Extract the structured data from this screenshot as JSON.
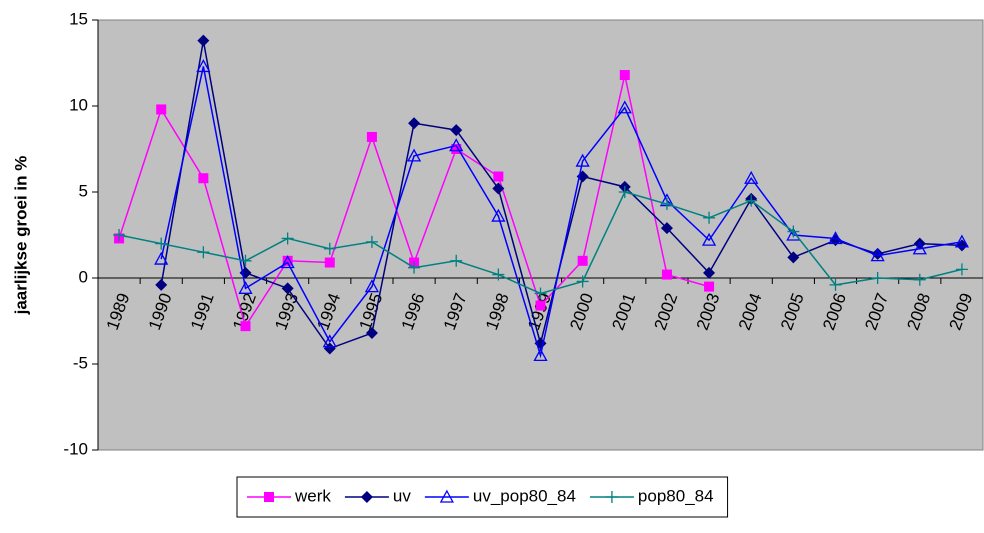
{
  "chart_data": {
    "type": "line",
    "y_label": "jaarlijkse groei in %",
    "categories": [
      "1989",
      "1990",
      "1991",
      "1992",
      "1993",
      "1994",
      "1995",
      "1996",
      "1997",
      "1998",
      "1999",
      "2000",
      "2001",
      "2002",
      "2003",
      "2004",
      "2005",
      "2006",
      "2007",
      "2008",
      "2009"
    ],
    "series": [
      {
        "name": "werk",
        "color": "#ff00ff",
        "marker": "square",
        "values": [
          2.3,
          9.8,
          5.8,
          -2.8,
          1.0,
          0.9,
          8.2,
          0.9,
          7.5,
          5.9,
          -1.6,
          1.0,
          11.8,
          0.2,
          -0.5,
          null,
          null,
          null,
          null,
          null,
          null
        ]
      },
      {
        "name": "uv",
        "color": "#000080",
        "marker": "diamond",
        "values": [
          null,
          -0.4,
          13.8,
          0.3,
          -0.6,
          -4.1,
          -3.2,
          9.0,
          8.6,
          5.2,
          -3.8,
          5.9,
          5.3,
          2.9,
          0.3,
          4.6,
          1.2,
          2.2,
          1.4,
          2.0,
          1.9
        ]
      },
      {
        "name": "uv_pop80_84",
        "color": "#0000ff",
        "marker": "triangle",
        "values": [
          null,
          1.1,
          12.3,
          -0.6,
          0.9,
          -3.7,
          -0.5,
          7.1,
          7.7,
          3.6,
          -4.5,
          6.8,
          9.9,
          4.5,
          2.2,
          5.8,
          2.5,
          2.3,
          1.3,
          1.7,
          2.1
        ]
      },
      {
        "name": "pop80_84",
        "color": "#008080",
        "marker": "plus",
        "values": [
          2.5,
          2.0,
          1.5,
          1.0,
          2.3,
          1.7,
          2.1,
          0.6,
          1.0,
          0.2,
          -0.9,
          -0.2,
          5.0,
          4.3,
          3.5,
          4.5,
          2.7,
          -0.4,
          0.0,
          -0.1,
          0.5
        ]
      }
    ],
    "ylim": [
      -10,
      15
    ],
    "yticks": [
      -10,
      -5,
      0,
      5,
      10,
      15
    ],
    "legend": "bottom",
    "plot_background": "#c0c0c0"
  }
}
